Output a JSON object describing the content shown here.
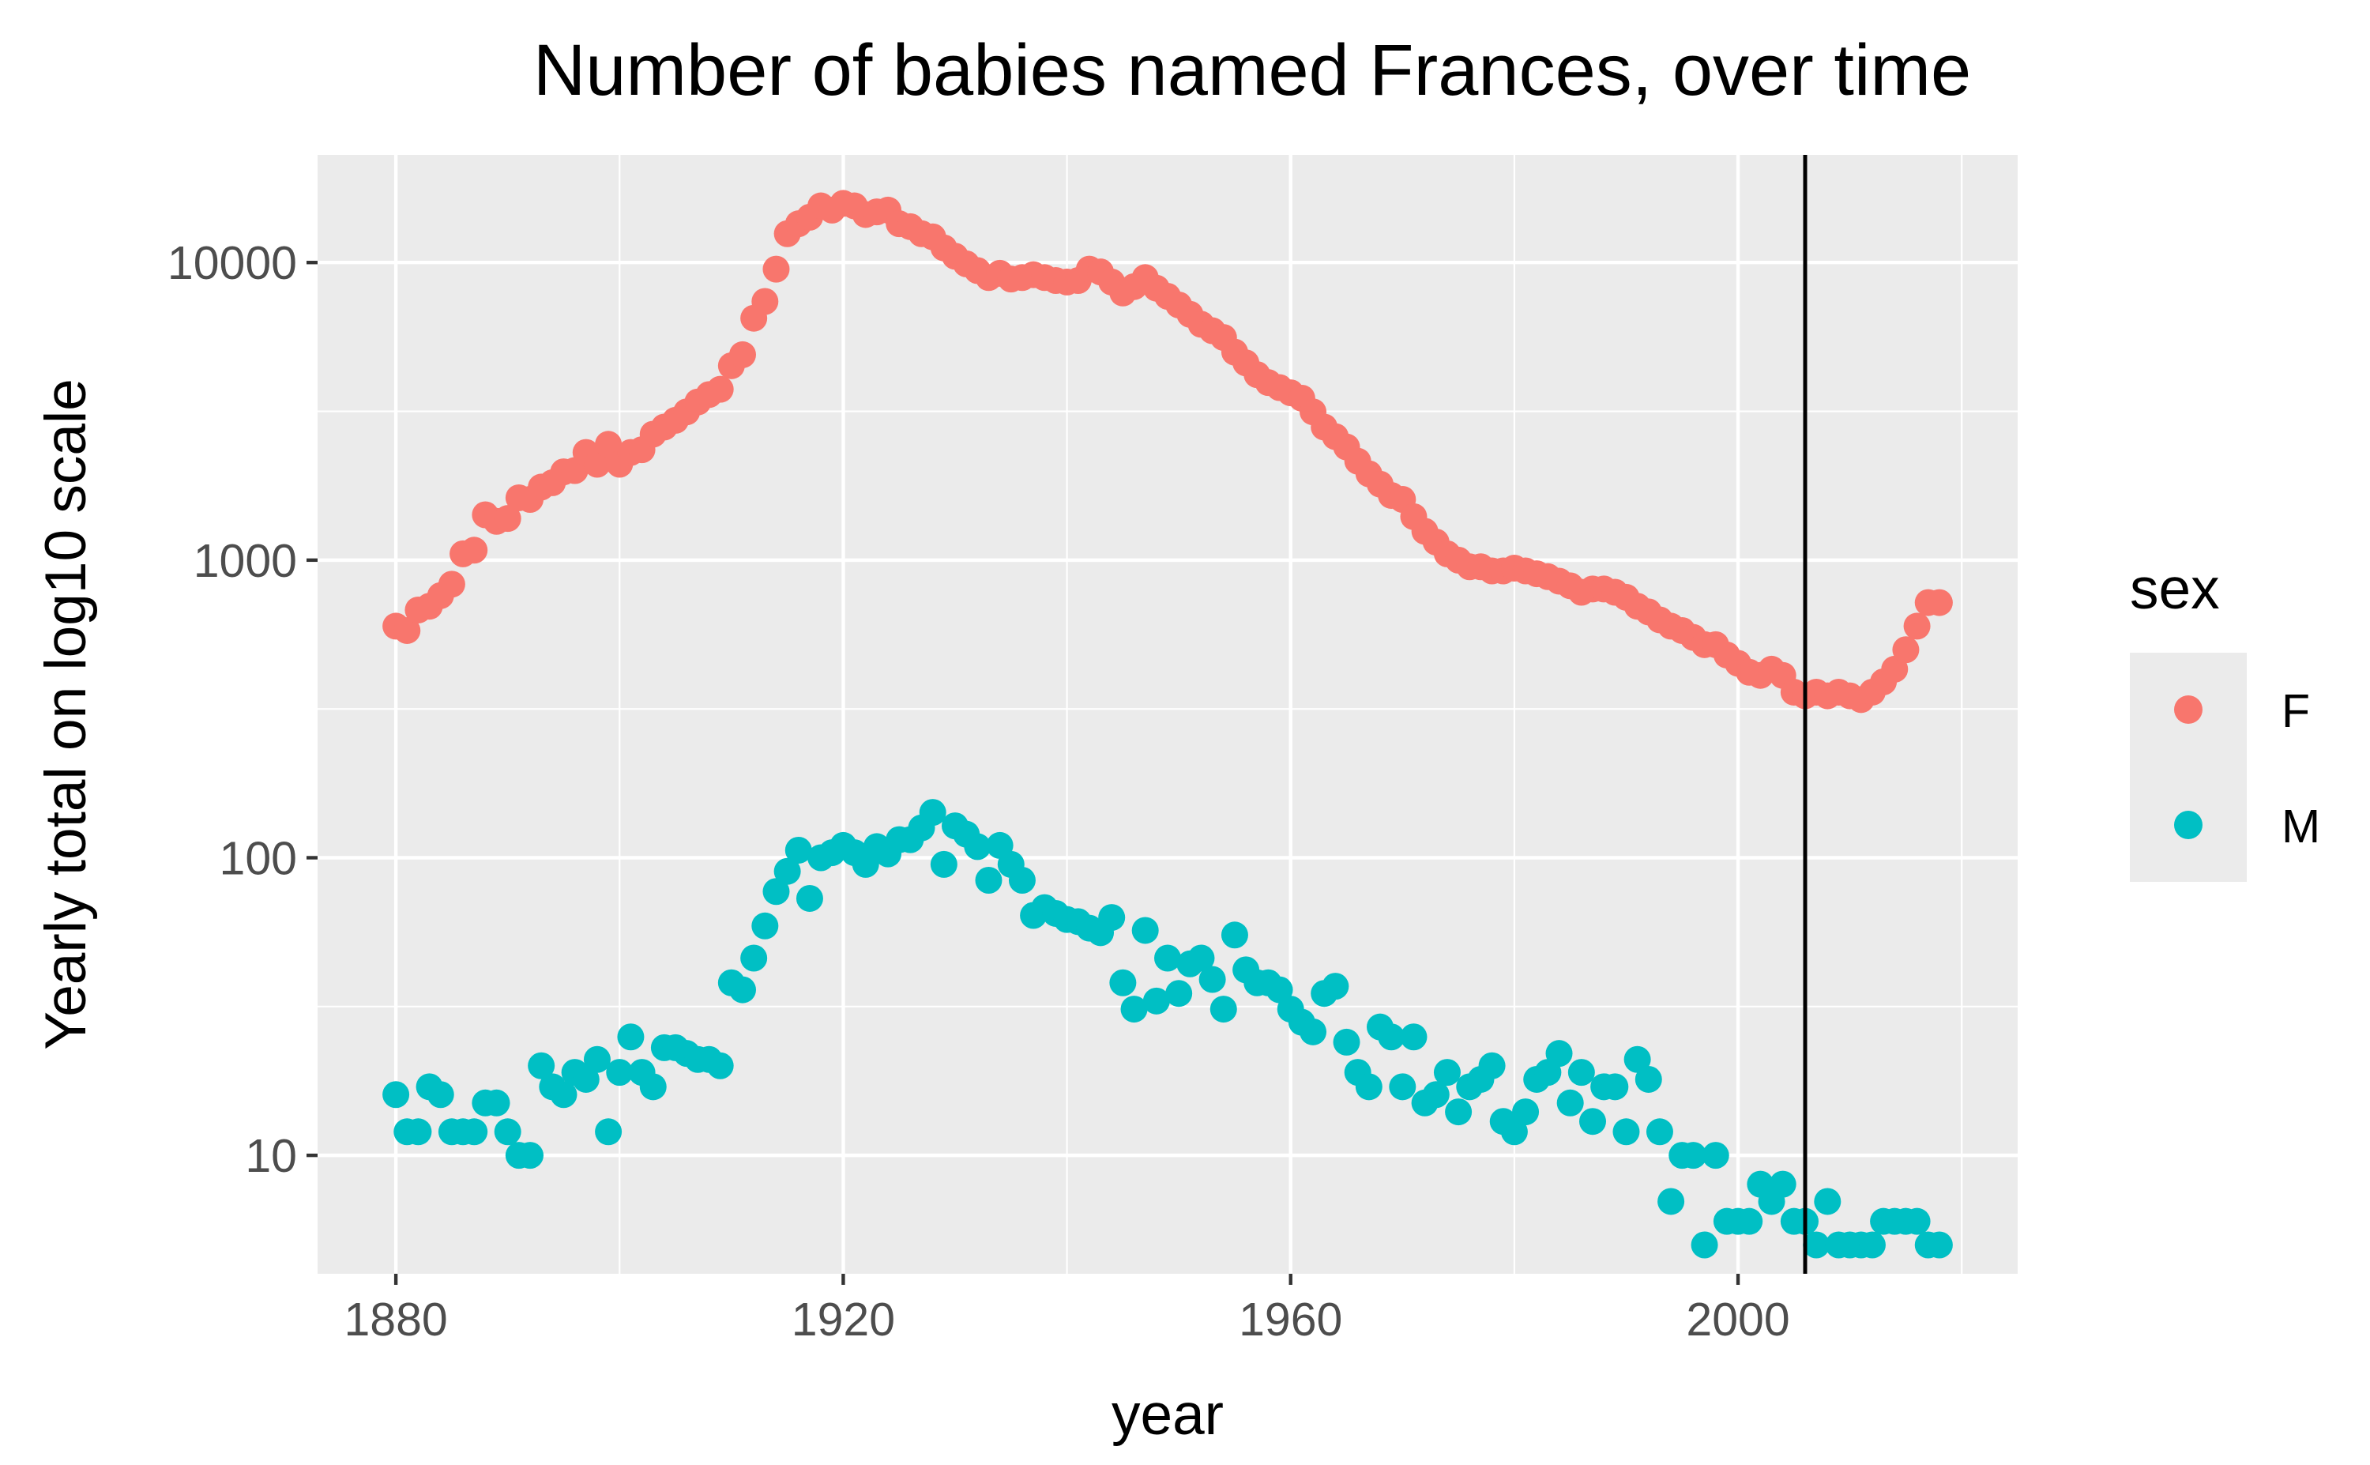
{
  "chart_data": {
    "type": "scatter",
    "title": "Number of babies named Frances, over time",
    "xlabel": "year",
    "ylabel": "Yearly total on log10 scale",
    "yscale": "log10",
    "xlim": [
      1873,
      2025
    ],
    "ylim": [
      4,
      23000
    ],
    "x_ticks": [
      1880,
      1920,
      1960,
      2000
    ],
    "y_ticks": [
      10,
      100,
      1000,
      10000
    ],
    "x_tick_labels": [
      "1880",
      "1920",
      "1960",
      "2000"
    ],
    "y_tick_labels": [
      "10",
      "100",
      "1000",
      "10000"
    ],
    "grid": true,
    "background": "#ebebeb",
    "vline": {
      "x": 2006
    },
    "legend": {
      "title": "sex",
      "position": "right"
    },
    "series": [
      {
        "name": "F",
        "color": "#f8766d",
        "x": [
          1880,
          1881,
          1882,
          1883,
          1884,
          1885,
          1886,
          1887,
          1888,
          1889,
          1890,
          1891,
          1892,
          1893,
          1894,
          1895,
          1896,
          1897,
          1898,
          1899,
          1900,
          1901,
          1902,
          1903,
          1904,
          1905,
          1906,
          1907,
          1908,
          1909,
          1910,
          1911,
          1912,
          1913,
          1914,
          1915,
          1916,
          1917,
          1918,
          1919,
          1920,
          1921,
          1922,
          1923,
          1924,
          1925,
          1926,
          1927,
          1928,
          1929,
          1930,
          1931,
          1932,
          1933,
          1934,
          1935,
          1936,
          1937,
          1938,
          1939,
          1940,
          1941,
          1942,
          1943,
          1944,
          1945,
          1946,
          1947,
          1948,
          1949,
          1950,
          1951,
          1952,
          1953,
          1954,
          1955,
          1956,
          1957,
          1958,
          1959,
          1960,
          1961,
          1962,
          1963,
          1964,
          1965,
          1966,
          1967,
          1968,
          1969,
          1970,
          1971,
          1972,
          1973,
          1974,
          1975,
          1976,
          1977,
          1978,
          1979,
          1980,
          1981,
          1982,
          1983,
          1984,
          1985,
          1986,
          1987,
          1988,
          1989,
          1990,
          1991,
          1992,
          1993,
          1994,
          1995,
          1996,
          1997,
          1998,
          1999,
          2000,
          2001,
          2002,
          2003,
          2004,
          2005,
          2006,
          2007,
          2008,
          2009,
          2010,
          2011,
          2012,
          2013,
          2014,
          2015,
          2016,
          2017,
          2018
        ],
        "values": [
          600,
          580,
          680,
          700,
          760,
          830,
          1050,
          1080,
          1420,
          1350,
          1380,
          1620,
          1600,
          1760,
          1820,
          1980,
          2000,
          2300,
          2100,
          2450,
          2100,
          2300,
          2350,
          2650,
          2800,
          2950,
          3150,
          3400,
          3600,
          3750,
          4500,
          4900,
          6500,
          7400,
          9500,
          12500,
          13500,
          14200,
          15500,
          15000,
          15800,
          15500,
          14500,
          14800,
          15000,
          13500,
          13200,
          12500,
          12200,
          11200,
          10500,
          9900,
          9400,
          8900,
          9200,
          8800,
          8900,
          9100,
          8900,
          8700,
          8600,
          8700,
          9500,
          9300,
          8600,
          7900,
          8300,
          8900,
          8200,
          7700,
          7200,
          6700,
          6200,
          5900,
          5600,
          5000,
          4600,
          4200,
          3950,
          3800,
          3650,
          3500,
          3150,
          2800,
          2600,
          2400,
          2150,
          1950,
          1800,
          1650,
          1600,
          1400,
          1250,
          1150,
          1050,
          1000,
          950,
          950,
          920,
          920,
          940,
          920,
          900,
          880,
          850,
          820,
          780,
          800,
          800,
          780,
          750,
          700,
          670,
          630,
          600,
          580,
          550,
          520,
          520,
          480,
          450,
          420,
          410,
          430,
          410,
          360,
          350,
          360,
          350,
          360,
          350,
          340,
          360,
          390,
          430,
          500,
          600,
          720,
          720
        ]
      },
      {
        "name": "M",
        "color": "#00bfc4",
        "x": [
          1880,
          1881,
          1882,
          1883,
          1884,
          1885,
          1886,
          1887,
          1888,
          1889,
          1890,
          1891,
          1892,
          1893,
          1894,
          1895,
          1896,
          1897,
          1898,
          1899,
          1900,
          1901,
          1902,
          1903,
          1904,
          1905,
          1906,
          1907,
          1908,
          1909,
          1910,
          1911,
          1912,
          1913,
          1914,
          1915,
          1916,
          1917,
          1918,
          1919,
          1920,
          1921,
          1922,
          1923,
          1924,
          1925,
          1926,
          1927,
          1928,
          1929,
          1930,
          1931,
          1932,
          1933,
          1934,
          1935,
          1936,
          1937,
          1938,
          1939,
          1940,
          1941,
          1942,
          1943,
          1944,
          1945,
          1946,
          1947,
          1948,
          1949,
          1950,
          1951,
          1952,
          1953,
          1954,
          1955,
          1956,
          1957,
          1958,
          1959,
          1960,
          1961,
          1962,
          1963,
          1964,
          1965,
          1966,
          1967,
          1968,
          1969,
          1970,
          1971,
          1972,
          1973,
          1974,
          1975,
          1976,
          1977,
          1978,
          1979,
          1980,
          1981,
          1982,
          1983,
          1984,
          1985,
          1986,
          1987,
          1988,
          1989,
          1990,
          1991,
          1992,
          1993,
          1994,
          1995,
          1996,
          1997,
          1998,
          1999,
          2000,
          2001,
          2002,
          2003,
          2004,
          2005,
          2006,
          2007,
          2008,
          2009,
          2010,
          2011,
          2012,
          2013,
          2014,
          2015,
          2016,
          2017,
          2018
        ],
        "values": [
          16,
          12,
          12,
          17,
          16,
          12,
          12,
          12,
          15,
          15,
          12,
          10,
          10,
          20,
          17,
          16,
          19,
          18,
          21,
          12,
          19,
          25,
          19,
          17,
          23,
          23,
          22,
          21,
          21,
          20,
          38,
          36,
          46,
          59,
          77,
          90,
          106,
          73,
          100,
          104,
          110,
          104,
          95,
          109,
          103,
          115,
          115,
          126,
          142,
          95,
          128,
          120,
          109,
          84,
          110,
          95,
          84,
          64,
          68,
          65,
          62,
          61,
          58,
          56,
          63,
          38,
          31,
          57,
          33,
          46,
          35,
          44,
          46,
          39,
          31,
          55,
          42,
          38,
          38,
          36,
          31,
          28,
          26,
          35,
          37,
          24,
          19,
          17,
          27,
          25,
          17,
          25,
          15,
          16,
          19,
          14,
          17,
          18,
          20,
          13,
          12,
          14,
          18,
          19,
          22,
          15,
          19,
          13,
          17,
          17,
          12,
          21,
          18,
          12,
          7,
          10,
          10,
          5,
          10,
          6,
          6,
          6,
          8,
          7,
          8,
          6,
          6,
          5,
          7,
          5,
          5,
          5,
          5,
          6,
          6,
          6,
          6,
          5,
          5
        ]
      }
    ]
  }
}
